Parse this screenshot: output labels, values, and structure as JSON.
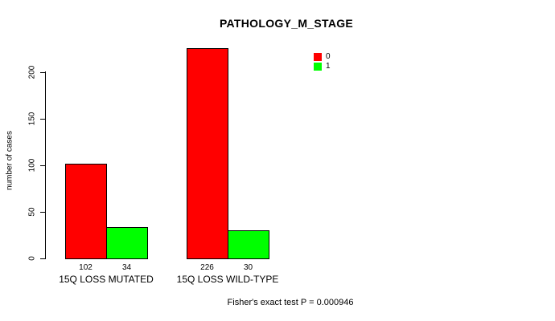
{
  "title": "PATHOLOGY_M_STAGE",
  "footer_note": "Fisher's exact test P = 0.000946",
  "colors": {
    "bar_fill_series_0": "#FF0000",
    "bar_fill_series_1": "#00FF00",
    "axis": "#000000",
    "background": "#FFFFFF"
  },
  "chart_data": {
    "type": "bar",
    "title": "PATHOLOGY_M_STAGE",
    "categories": [
      "15Q LOSS MUTATED",
      "15Q LOSS WILD-TYPE"
    ],
    "series": [
      {
        "name": "0",
        "color": "#FF0000",
        "values": [
          102,
          226
        ]
      },
      {
        "name": "1",
        "color": "#00FF00",
        "values": [
          34,
          30
        ]
      }
    ],
    "bar_value_labels": [
      [
        "102",
        "34"
      ],
      [
        "226",
        "30"
      ]
    ],
    "xlabel": "",
    "ylabel": "number of cases",
    "yticks": [
      0,
      50,
      100,
      150,
      200
    ],
    "ylim": [
      0,
      200
    ],
    "grid": false,
    "legend_position": "top-right",
    "annotation": "Fisher's exact test P = 0.000946"
  }
}
